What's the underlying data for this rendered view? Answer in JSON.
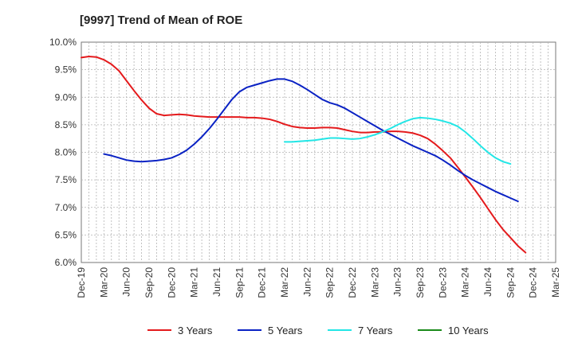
{
  "chart_data": {
    "type": "line",
    "title": "[9997]  Trend of Mean of ROE",
    "xlabel": "",
    "ylabel": "",
    "x_ticks": [
      "Dec-19",
      "Mar-20",
      "Jun-20",
      "Sep-20",
      "Dec-20",
      "Mar-21",
      "Jun-21",
      "Sep-21",
      "Dec-21",
      "Mar-22",
      "Jun-22",
      "Sep-22",
      "Dec-22",
      "Mar-23",
      "Jun-23",
      "Sep-23",
      "Dec-23",
      "Mar-24",
      "Jun-24",
      "Sep-24",
      "Dec-24",
      "Mar-25"
    ],
    "y_ticks": [
      "10.0%",
      "9.5%",
      "9.0%",
      "8.5%",
      "8.0%",
      "7.5%",
      "7.0%",
      "6.5%",
      "6.0%"
    ],
    "ylim": [
      6.0,
      10.0
    ],
    "grid": true,
    "legend_position": "bottom",
    "series": [
      {
        "name": "3 Years",
        "color": "#e41a1c",
        "points": [
          [
            "Dec-19",
            9.72
          ],
          [
            "Jan-20",
            9.74
          ],
          [
            "Feb-20",
            9.73
          ],
          [
            "Mar-20",
            9.68
          ],
          [
            "Apr-20",
            9.6
          ],
          [
            "May-20",
            9.48
          ],
          [
            "Jun-20",
            9.3
          ],
          [
            "Jul-20",
            9.12
          ],
          [
            "Aug-20",
            8.95
          ],
          [
            "Sep-20",
            8.8
          ],
          [
            "Oct-20",
            8.7
          ],
          [
            "Nov-20",
            8.67
          ],
          [
            "Dec-20",
            8.68
          ],
          [
            "Jan-21",
            8.69
          ],
          [
            "Feb-21",
            8.68
          ],
          [
            "Mar-21",
            8.66
          ],
          [
            "Apr-21",
            8.65
          ],
          [
            "May-21",
            8.64
          ],
          [
            "Jun-21",
            8.64
          ],
          [
            "Jul-21",
            8.64
          ],
          [
            "Aug-21",
            8.64
          ],
          [
            "Sep-21",
            8.64
          ],
          [
            "Oct-21",
            8.63
          ],
          [
            "Nov-21",
            8.63
          ],
          [
            "Dec-21",
            8.62
          ],
          [
            "Jan-22",
            8.6
          ],
          [
            "Feb-22",
            8.56
          ],
          [
            "Mar-22",
            8.51
          ],
          [
            "Apr-22",
            8.47
          ],
          [
            "May-22",
            8.45
          ],
          [
            "Jun-22",
            8.44
          ],
          [
            "Jul-22",
            8.44
          ],
          [
            "Aug-22",
            8.45
          ],
          [
            "Sep-22",
            8.45
          ],
          [
            "Oct-22",
            8.44
          ],
          [
            "Nov-22",
            8.41
          ],
          [
            "Dec-22",
            8.38
          ],
          [
            "Jan-23",
            8.36
          ],
          [
            "Feb-23",
            8.36
          ],
          [
            "Mar-23",
            8.37
          ],
          [
            "Apr-23",
            8.37
          ],
          [
            "May-23",
            8.38
          ],
          [
            "Jun-23",
            8.38
          ],
          [
            "Jul-23",
            8.37
          ],
          [
            "Aug-23",
            8.35
          ],
          [
            "Sep-23",
            8.31
          ],
          [
            "Oct-23",
            8.25
          ],
          [
            "Nov-23",
            8.15
          ],
          [
            "Dec-23",
            8.03
          ],
          [
            "Jan-24",
            7.9
          ],
          [
            "Feb-24",
            7.73
          ],
          [
            "Mar-24",
            7.55
          ],
          [
            "Apr-24",
            7.37
          ],
          [
            "May-24",
            7.18
          ],
          [
            "Jun-24",
            6.98
          ],
          [
            "Jul-24",
            6.78
          ],
          [
            "Aug-24",
            6.6
          ],
          [
            "Sep-24",
            6.45
          ],
          [
            "Oct-24",
            6.3
          ],
          [
            "Nov-24",
            6.18
          ]
        ]
      },
      {
        "name": "5 Years",
        "color": "#0a22c4",
        "points": [
          [
            "Mar-20",
            7.97
          ],
          [
            "Apr-20",
            7.94
          ],
          [
            "May-20",
            7.9
          ],
          [
            "Jun-20",
            7.86
          ],
          [
            "Jul-20",
            7.84
          ],
          [
            "Aug-20",
            7.83
          ],
          [
            "Sep-20",
            7.84
          ],
          [
            "Oct-20",
            7.85
          ],
          [
            "Nov-20",
            7.87
          ],
          [
            "Dec-20",
            7.9
          ],
          [
            "Jan-21",
            7.96
          ],
          [
            "Feb-21",
            8.04
          ],
          [
            "Mar-21",
            8.15
          ],
          [
            "Apr-21",
            8.28
          ],
          [
            "May-21",
            8.43
          ],
          [
            "Jun-21",
            8.6
          ],
          [
            "Jul-21",
            8.78
          ],
          [
            "Aug-21",
            8.96
          ],
          [
            "Sep-21",
            9.1
          ],
          [
            "Oct-21",
            9.18
          ],
          [
            "Nov-21",
            9.22
          ],
          [
            "Dec-21",
            9.26
          ],
          [
            "Jan-22",
            9.3
          ],
          [
            "Feb-22",
            9.33
          ],
          [
            "Mar-22",
            9.33
          ],
          [
            "Apr-22",
            9.29
          ],
          [
            "May-22",
            9.22
          ],
          [
            "Jun-22",
            9.14
          ],
          [
            "Jul-22",
            9.05
          ],
          [
            "Aug-22",
            8.96
          ],
          [
            "Sep-22",
            8.9
          ],
          [
            "Oct-22",
            8.86
          ],
          [
            "Nov-22",
            8.8
          ],
          [
            "Dec-22",
            8.72
          ],
          [
            "Jan-23",
            8.64
          ],
          [
            "Feb-23",
            8.56
          ],
          [
            "Mar-23",
            8.48
          ],
          [
            "Apr-23",
            8.4
          ],
          [
            "May-23",
            8.33
          ],
          [
            "Jun-23",
            8.26
          ],
          [
            "Jul-23",
            8.19
          ],
          [
            "Aug-23",
            8.12
          ],
          [
            "Sep-23",
            8.06
          ],
          [
            "Oct-23",
            8.0
          ],
          [
            "Nov-23",
            7.94
          ],
          [
            "Dec-23",
            7.86
          ],
          [
            "Jan-24",
            7.77
          ],
          [
            "Feb-24",
            7.67
          ],
          [
            "Mar-24",
            7.58
          ],
          [
            "Apr-24",
            7.5
          ],
          [
            "May-24",
            7.43
          ],
          [
            "Jun-24",
            7.36
          ],
          [
            "Jul-24",
            7.29
          ],
          [
            "Aug-24",
            7.23
          ],
          [
            "Sep-24",
            7.17
          ],
          [
            "Oct-24",
            7.11
          ]
        ]
      },
      {
        "name": "7 Years",
        "color": "#22e6e6",
        "points": [
          [
            "Mar-22",
            8.19
          ],
          [
            "Apr-22",
            8.19
          ],
          [
            "May-22",
            8.2
          ],
          [
            "Jun-22",
            8.21
          ],
          [
            "Jul-22",
            8.22
          ],
          [
            "Aug-22",
            8.24
          ],
          [
            "Sep-22",
            8.26
          ],
          [
            "Oct-22",
            8.26
          ],
          [
            "Nov-22",
            8.25
          ],
          [
            "Dec-22",
            8.24
          ],
          [
            "Jan-23",
            8.25
          ],
          [
            "Feb-23",
            8.28
          ],
          [
            "Mar-23",
            8.32
          ],
          [
            "Apr-23",
            8.37
          ],
          [
            "May-23",
            8.43
          ],
          [
            "Jun-23",
            8.5
          ],
          [
            "Jul-23",
            8.56
          ],
          [
            "Aug-23",
            8.61
          ],
          [
            "Sep-23",
            8.63
          ],
          [
            "Oct-23",
            8.62
          ],
          [
            "Nov-23",
            8.6
          ],
          [
            "Dec-23",
            8.57
          ],
          [
            "Jan-24",
            8.53
          ],
          [
            "Feb-24",
            8.47
          ],
          [
            "Mar-24",
            8.37
          ],
          [
            "Apr-24",
            8.25
          ],
          [
            "May-24",
            8.12
          ],
          [
            "Jun-24",
            8.0
          ],
          [
            "Jul-24",
            7.9
          ],
          [
            "Aug-24",
            7.83
          ],
          [
            "Sep-24",
            7.79
          ]
        ]
      },
      {
        "name": "10 Years",
        "color": "#1a8a1a",
        "points": []
      }
    ]
  }
}
